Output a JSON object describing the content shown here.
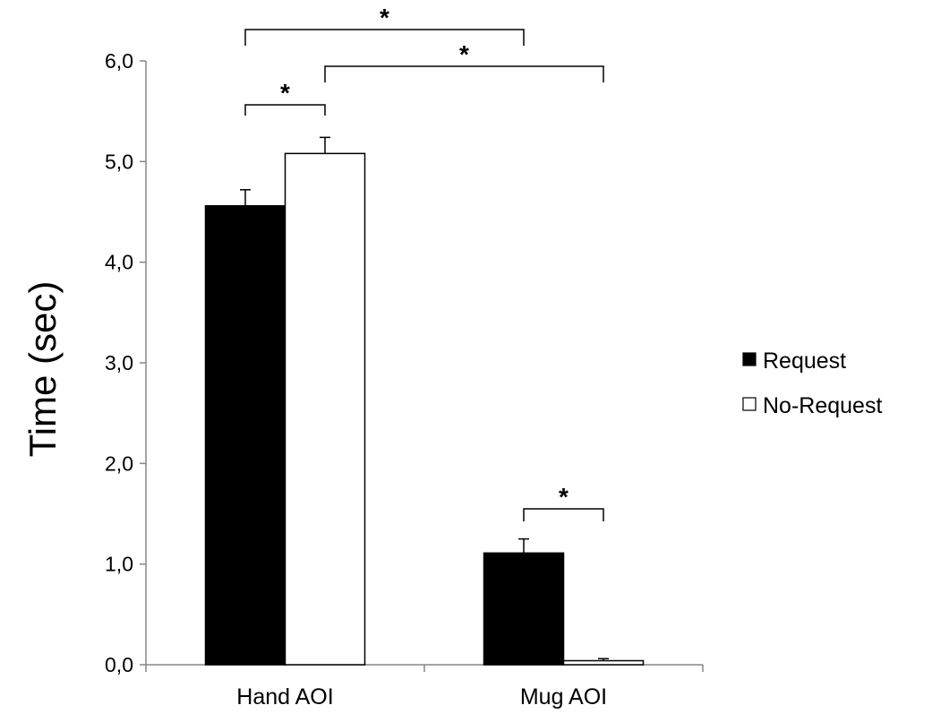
{
  "chart_data": {
    "type": "bar",
    "title": "",
    "xlabel": "",
    "ylabel": "Time (sec)",
    "ylim": [
      0,
      6
    ],
    "yticks": [
      "0,0",
      "1,0",
      "2,0",
      "3,0",
      "4,0",
      "5,0",
      "6,0"
    ],
    "categories": [
      "Hand AOI",
      "Mug AOI"
    ],
    "series": [
      {
        "name": "Request",
        "values": [
          4.56,
          1.11
        ],
        "errors": [
          0.16,
          0.14
        ],
        "color": "#000000"
      },
      {
        "name": "No-Request",
        "values": [
          5.08,
          0.04
        ],
        "errors": [
          0.16,
          0.02
        ],
        "color": "#ffffff"
      }
    ],
    "legend_position": "right",
    "grid": false,
    "significance": [
      {
        "label": "*",
        "from": {
          "category": 0,
          "series": 0
        },
        "to": {
          "category": 1,
          "series": 0
        }
      },
      {
        "label": "*",
        "from": {
          "category": 0,
          "series": 1
        },
        "to": {
          "category": 1,
          "series": 1
        }
      },
      {
        "label": "*",
        "from": {
          "category": 0,
          "series": 0
        },
        "to": {
          "category": 0,
          "series": 1
        }
      },
      {
        "label": "*",
        "from": {
          "category": 1,
          "series": 0
        },
        "to": {
          "category": 1,
          "series": 1
        }
      }
    ]
  }
}
